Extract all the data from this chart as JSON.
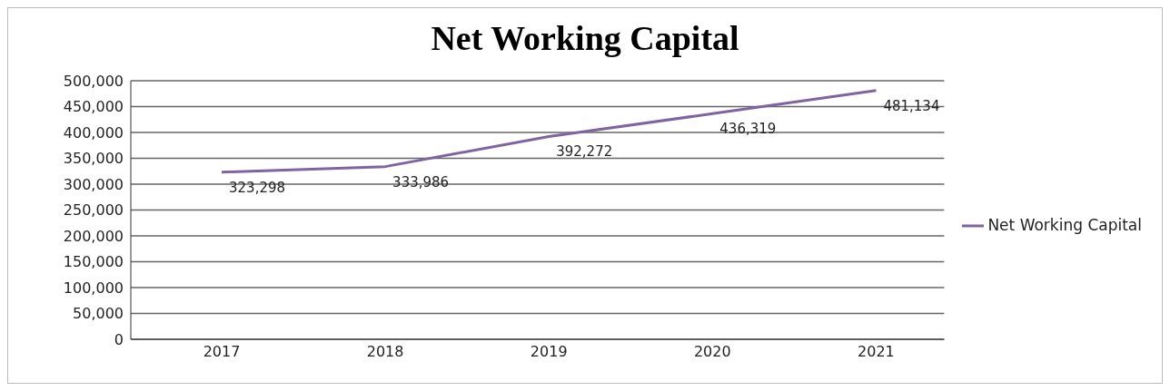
{
  "chart_data": {
    "type": "line",
    "title": "Net Working Capital",
    "categories": [
      "2017",
      "2018",
      "2019",
      "2020",
      "2021"
    ],
    "series": [
      {
        "name": "Net Working Capital",
        "color": "#8064a2",
        "values": [
          323298,
          333986,
          392272,
          436319,
          481134
        ],
        "value_labels": [
          "323,298",
          "333,986",
          "392,272",
          "436,319",
          "481,134"
        ]
      }
    ],
    "ylim": [
      0,
      500000
    ],
    "yticks": [
      {
        "value": 0,
        "label": "0"
      },
      {
        "value": 50000,
        "label": "50,000"
      },
      {
        "value": 100000,
        "label": "100,000"
      },
      {
        "value": 150000,
        "label": "150,000"
      },
      {
        "value": 200000,
        "label": "200,000"
      },
      {
        "value": 250000,
        "label": "250,000"
      },
      {
        "value": 300000,
        "label": "300,000"
      },
      {
        "value": 350000,
        "label": "350,000"
      },
      {
        "value": 400000,
        "label": "400,000"
      },
      {
        "value": 450000,
        "label": "450,000"
      },
      {
        "value": 500000,
        "label": "500,000"
      }
    ],
    "grid": "y",
    "legend": "right",
    "marker": "none",
    "line_style": "solid"
  }
}
